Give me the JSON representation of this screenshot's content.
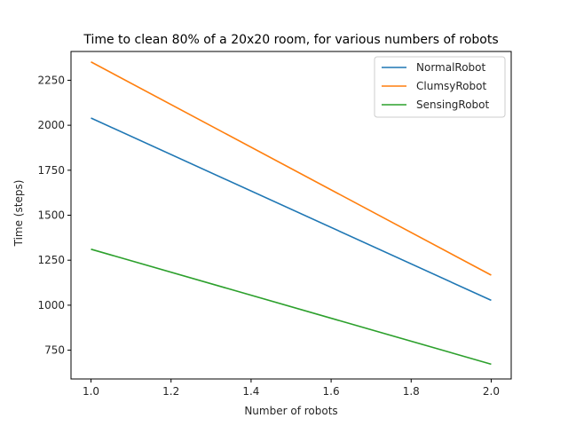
{
  "chart_data": {
    "type": "line",
    "title": "Time to clean 80% of a 20x20 room, for various numbers of robots",
    "xlabel": "Number of robots",
    "ylabel": "Time (steps)",
    "xlim": [
      0.95,
      2.05
    ],
    "ylim": [
      590,
      2410
    ],
    "x_ticks": [
      1.0,
      1.2,
      1.4,
      1.6,
      1.8,
      2.0
    ],
    "x_tick_labels": [
      "1.0",
      "1.2",
      "1.4",
      "1.6",
      "1.8",
      "2.0"
    ],
    "y_ticks": [
      750,
      1000,
      1250,
      1500,
      1750,
      2000,
      2250
    ],
    "y_tick_labels": [
      "750",
      "1000",
      "1250",
      "1500",
      "1750",
      "2000",
      "2250"
    ],
    "grid": false,
    "legend_position": "top-right",
    "x": [
      1.0,
      2.0
    ],
    "series": [
      {
        "name": "NormalRobot",
        "values": [
          2040,
          1027
        ],
        "color": "#1f77b4"
      },
      {
        "name": "ClumsyRobot",
        "values": [
          2352,
          1167
        ],
        "color": "#ff7f0e"
      },
      {
        "name": "SensingRobot",
        "values": [
          1311,
          672
        ],
        "color": "#2ca02c"
      }
    ]
  }
}
